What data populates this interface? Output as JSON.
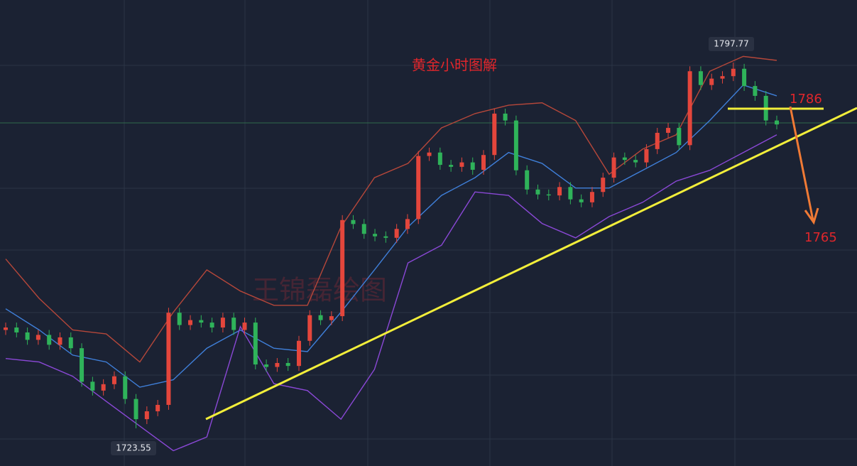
{
  "chart_data": {
    "type": "candlestick",
    "title": "黄金小时图解",
    "watermark": "王锦磊绘图",
    "up_color": "#e4463c",
    "down_color": "#2fb35a",
    "open": [
      1743.5,
      1744.0,
      1743.0,
      1741.5,
      1742.5,
      1740.5,
      1742.0,
      1739.8,
      1733.0,
      1731.2,
      1732.5,
      1734.1,
      1729.5,
      1725.4,
      1727.0,
      1728.3,
      1747.0,
      1744.5,
      1745.5,
      1745.0,
      1744.0,
      1746.0,
      1743.5,
      1745.0,
      1736.5,
      1736.0,
      1736.8,
      1736.2,
      1741.3,
      1746.5,
      1745.5,
      1746.3,
      1765.8,
      1765.0,
      1763.0,
      1762.5,
      1762.2,
      1764.0,
      1766.0,
      1778.8,
      1779.5,
      1777.0,
      1776.6,
      1777.5,
      1776.0,
      1779.0,
      1787.4,
      1786.0,
      1775.9,
      1772.0,
      1771.0,
      1770.8,
      1772.5,
      1770.0,
      1769.4,
      1771.5,
      1774.4,
      1778.5,
      1778.0,
      1777.5,
      1780.2,
      1783.5,
      1784.5,
      1781.0,
      1796.0,
      1793.2,
      1794.5,
      1795.0,
      1796.5,
      1793.0,
      1791.0,
      1786.0
    ],
    "high": [
      1745.0,
      1745.0,
      1744.0,
      1743.5,
      1743.5,
      1743.0,
      1743.0,
      1740.8,
      1734.0,
      1733.5,
      1735.1,
      1735.1,
      1730.5,
      1728.0,
      1729.3,
      1748.0,
      1748.0,
      1746.5,
      1746.5,
      1746.0,
      1747.0,
      1747.0,
      1746.0,
      1746.0,
      1737.5,
      1737.8,
      1737.8,
      1742.3,
      1747.5,
      1747.5,
      1747.3,
      1766.8,
      1766.8,
      1766.0,
      1764.0,
      1763.5,
      1765.0,
      1767.0,
      1779.8,
      1780.5,
      1780.5,
      1778.0,
      1778.5,
      1778.5,
      1780.0,
      1788.4,
      1788.4,
      1787.0,
      1776.9,
      1773.0,
      1772.0,
      1773.5,
      1773.5,
      1771.0,
      1772.5,
      1775.4,
      1779.5,
      1779.5,
      1779.0,
      1781.2,
      1784.5,
      1785.5,
      1785.5,
      1797.0,
      1797.0,
      1795.5,
      1796.0,
      1797.77,
      1797.5,
      1794.0,
      1792.0,
      1787.0
    ],
    "low": [
      1742.5,
      1742.0,
      1740.5,
      1740.5,
      1739.5,
      1739.5,
      1738.8,
      1732.0,
      1730.2,
      1730.2,
      1731.5,
      1728.5,
      1723.55,
      1724.4,
      1726.0,
      1727.3,
      1743.5,
      1743.5,
      1744.0,
      1743.0,
      1743.0,
      1742.5,
      1742.5,
      1735.5,
      1735.0,
      1735.0,
      1735.2,
      1735.2,
      1740.3,
      1744.5,
      1744.5,
      1745.3,
      1764.0,
      1762.0,
      1761.5,
      1761.2,
      1761.2,
      1763.0,
      1765.0,
      1777.8,
      1776.0,
      1775.6,
      1775.6,
      1775.0,
      1775.0,
      1778.0,
      1785.0,
      1774.9,
      1771.0,
      1770.0,
      1769.8,
      1769.8,
      1769.0,
      1768.4,
      1768.4,
      1770.5,
      1773.4,
      1777.0,
      1776.5,
      1776.5,
      1779.2,
      1782.5,
      1780.0,
      1780.0,
      1792.2,
      1792.2,
      1793.5,
      1794.0,
      1792.0,
      1790.0,
      1785.0,
      1784.2
    ],
    "close": [
      1744.0,
      1743.0,
      1741.5,
      1742.5,
      1740.5,
      1742.0,
      1739.8,
      1733.0,
      1731.2,
      1732.5,
      1734.1,
      1729.5,
      1725.4,
      1727.0,
      1728.3,
      1747.0,
      1744.5,
      1745.5,
      1745.0,
      1744.0,
      1746.0,
      1743.5,
      1745.0,
      1736.5,
      1736.0,
      1736.8,
      1736.2,
      1741.3,
      1746.5,
      1745.5,
      1746.3,
      1765.8,
      1765.0,
      1763.0,
      1762.5,
      1762.2,
      1764.0,
      1766.0,
      1778.8,
      1779.5,
      1777.0,
      1776.6,
      1777.5,
      1776.0,
      1779.0,
      1787.4,
      1786.0,
      1775.9,
      1772.0,
      1771.0,
      1770.8,
      1772.5,
      1770.0,
      1769.4,
      1771.5,
      1774.4,
      1778.5,
      1778.0,
      1777.5,
      1780.2,
      1783.5,
      1784.5,
      1781.0,
      1796.0,
      1793.2,
      1794.5,
      1795.0,
      1796.5,
      1793.0,
      1791.0,
      1786.0,
      1785.2
    ],
    "bands": [
      {
        "color": "#b5473a",
        "values": [
          1757.9,
          1749.9,
          1743.5,
          1742.7,
          1737.0,
          1747.1,
          1755.7,
          1751.4,
          1748.5,
          1748.5,
          1764.4,
          1774.4,
          1777.3,
          1784.5,
          1787.4,
          1789.1,
          1789.6,
          1786.0,
          1775.1,
          1780.2,
          1783.1,
          1796.0,
          1799.0,
          1798.2
        ]
      },
      {
        "color": "#3f7fd9",
        "values": [
          1747.8,
          1743.5,
          1738.4,
          1737.0,
          1731.9,
          1733.4,
          1739.8,
          1743.5,
          1739.8,
          1739.1,
          1747.1,
          1755.7,
          1764.4,
          1770.8,
          1774.4,
          1779.5,
          1777.3,
          1772.3,
          1772.3,
          1775.9,
          1779.5,
          1786.0,
          1793.2,
          1791.0
        ]
      },
      {
        "color": "#8a48d6",
        "values": [
          1737.7,
          1737.0,
          1734.1,
          1729.0,
          1724.0,
          1719.0,
          1721.8,
          1744.2,
          1732.6,
          1731.2,
          1725.4,
          1735.5,
          1757.1,
          1760.7,
          1771.5,
          1770.8,
          1765.1,
          1762.2,
          1766.5,
          1769.4,
          1773.7,
          1775.9,
          1779.5,
          1783.1
        ]
      }
    ],
    "annotations": [
      "1786",
      "1765"
    ],
    "ylim": [
      1715.9,
      1810.45
    ]
  }
}
